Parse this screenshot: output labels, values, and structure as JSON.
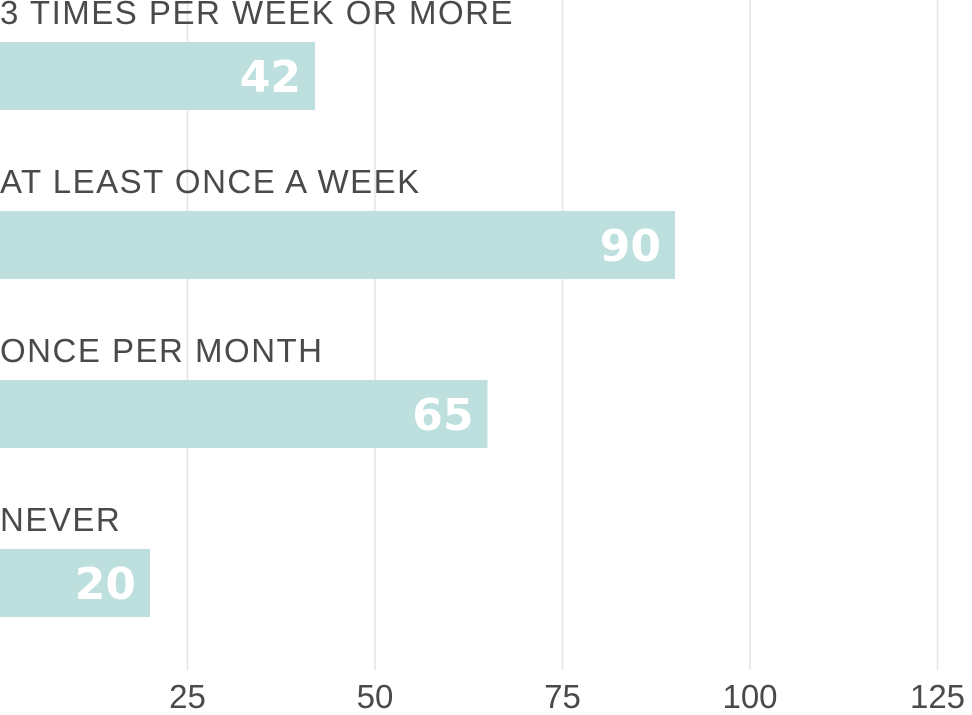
{
  "chart_data": {
    "type": "bar",
    "orientation": "horizontal",
    "categories": [
      "3 TIMES PER WEEK OR MORE",
      "AT LEAST ONCE A WEEK",
      "ONCE PER MONTH",
      "NEVER"
    ],
    "values": [
      42,
      90,
      65,
      20
    ],
    "xlim": [
      0,
      127
    ],
    "xticks": [
      25,
      50,
      75,
      100,
      125
    ],
    "grid": true,
    "bar_color": "#bde0df",
    "value_label_color": "#ffffff"
  }
}
